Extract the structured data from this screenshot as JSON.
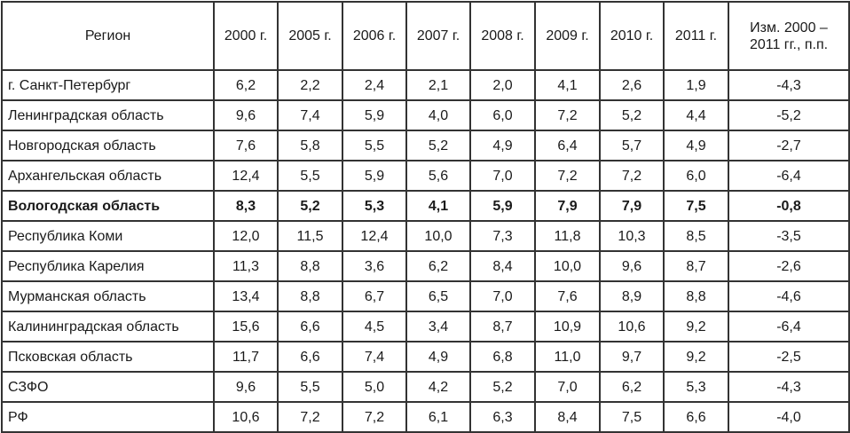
{
  "table": {
    "headers": [
      "Регион",
      "2000 г.",
      "2005 г.",
      "2006 г.",
      "2007 г.",
      "2008 г.",
      "2009 г.",
      "2010 г.",
      "2011 г.",
      "Изм. 2000 –\n2011 гг., п.п."
    ],
    "header_change_line1": "Изм. 2000 –",
    "header_change_line2": "2011 гг., п.п.",
    "rows": [
      {
        "region": "г. Санкт-Петербург",
        "values": [
          "6,2",
          "2,2",
          "2,4",
          "2,1",
          "2,0",
          "4,1",
          "2,6",
          "1,9",
          "-4,3"
        ]
      },
      {
        "region": "Ленинградская область",
        "values": [
          "9,6",
          "7,4",
          "5,9",
          "4,0",
          "6,0",
          "7,2",
          "5,2",
          "4,4",
          "-5,2"
        ]
      },
      {
        "region": "Новгородская область",
        "values": [
          "7,6",
          "5,8",
          "5,5",
          "5,2",
          "4,9",
          "6,4",
          "5,7",
          "4,9",
          "-2,7"
        ]
      },
      {
        "region": "Архангельская область",
        "values": [
          "12,4",
          "5,5",
          "5,9",
          "5,6",
          "7,0",
          "7,2",
          "7,2",
          "6,0",
          "-6,4"
        ]
      },
      {
        "region": "Вологодская область",
        "bold": true,
        "values": [
          "8,3",
          "5,2",
          "5,3",
          "4,1",
          "5,9",
          "7,9",
          "7,9",
          "7,5",
          "-0,8"
        ]
      },
      {
        "region": "Республика Коми",
        "values": [
          "12,0",
          "11,5",
          "12,4",
          "10,0",
          "7,3",
          "11,8",
          "10,3",
          "8,5",
          "-3,5"
        ]
      },
      {
        "region": "Республика Карелия",
        "values": [
          "11,3",
          "8,8",
          "3,6",
          "6,2",
          "8,4",
          "10,0",
          "9,6",
          "8,7",
          "-2,6"
        ]
      },
      {
        "region": "Мурманская область",
        "values": [
          "13,4",
          "8,8",
          "6,7",
          "6,5",
          "7,0",
          "7,6",
          "8,9",
          "8,8",
          "-4,6"
        ]
      },
      {
        "region": "Калининградская область",
        "values": [
          "15,6",
          "6,6",
          "4,5",
          "3,4",
          "8,7",
          "10,9",
          "10,6",
          "9,2",
          "-6,4"
        ]
      },
      {
        "region": "Псковская область",
        "values": [
          "11,7",
          "6,6",
          "7,4",
          "4,9",
          "6,8",
          "11,0",
          "9,7",
          "9,2",
          "-2,5"
        ]
      },
      {
        "region": "СЗФО",
        "values": [
          "9,6",
          "5,5",
          "5,0",
          "4,2",
          "5,2",
          "7,0",
          "6,2",
          "5,3",
          "-4,3"
        ]
      },
      {
        "region": "РФ",
        "values": [
          "10,6",
          "7,2",
          "7,2",
          "6,1",
          "6,3",
          "8,4",
          "7,5",
          "6,6",
          "-4,0"
        ]
      }
    ]
  }
}
